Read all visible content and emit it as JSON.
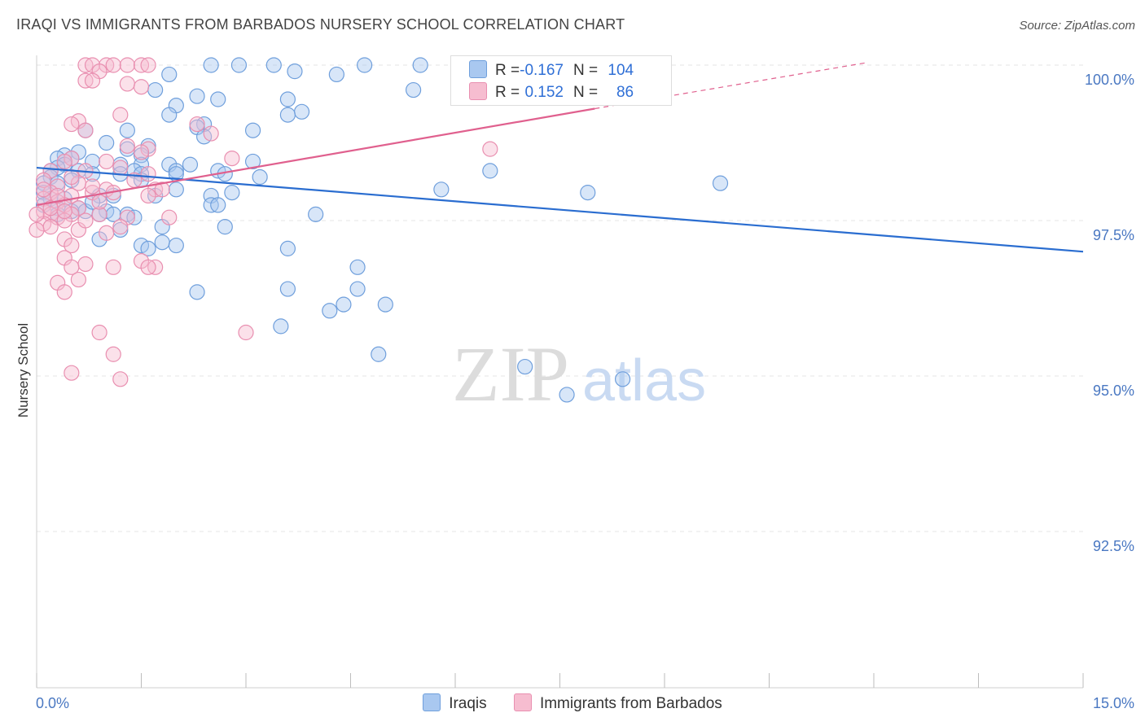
{
  "title": "IRAQI VS IMMIGRANTS FROM BARBADOS NURSERY SCHOOL CORRELATION CHART",
  "source": "Source: ZipAtlas.com",
  "watermark": {
    "zip": "ZIP",
    "atlas": "atlas"
  },
  "legend_top": {
    "rows": [
      {
        "r_label": "R =",
        "r_value": "-0.167",
        "n_label": "N =",
        "n_value": "104",
        "color": "#a9c8f0",
        "border": "#6f9fdc"
      },
      {
        "r_label": "R =",
        "r_value": "0.152",
        "n_label": "N =",
        "n_value": "86",
        "color": "#f6bdd0",
        "border": "#e98fb0"
      }
    ]
  },
  "legend_bottom": [
    {
      "label": "Iraqis",
      "color": "#a9c8f0",
      "border": "#6f9fdc"
    },
    {
      "label": "Immigrants from Barbados",
      "color": "#f6bdd0",
      "border": "#e98fb0"
    }
  ],
  "chart_data": {
    "type": "scatter",
    "title": "IRAQI VS IMMIGRANTS FROM BARBADOS NURSERY SCHOOL CORRELATION CHART",
    "xlabel": "",
    "ylabel": "Nursery School",
    "xlim": [
      0,
      15
    ],
    "ylim": [
      90.0,
      100.5
    ],
    "x_tick_labels": [
      {
        "value": 0,
        "label": "0.0%"
      },
      {
        "value": 15,
        "label": "15.0%"
      }
    ],
    "y_tick_labels": [
      {
        "value": 100,
        "label": "100.0%"
      },
      {
        "value": 97.5,
        "label": "97.5%"
      },
      {
        "value": 95,
        "label": "95.0%"
      },
      {
        "value": 92.5,
        "label": "92.5%"
      }
    ],
    "series": [
      {
        "name": "Iraqis",
        "color": "#a9c8f0",
        "stroke": "#6f9fdc",
        "trend": {
          "x0": 0,
          "y0": 98.35,
          "x1": 15,
          "y1": 97.0,
          "color": "#2a6dd0"
        },
        "points": [
          [
            2.5,
            100.0
          ],
          [
            2.9,
            100.0
          ],
          [
            3.4,
            100.0
          ],
          [
            4.7,
            100.0
          ],
          [
            5.5,
            100.0
          ],
          [
            3.7,
            99.9
          ],
          [
            4.3,
            99.85
          ],
          [
            1.9,
            99.85
          ],
          [
            1.7,
            99.6
          ],
          [
            5.4,
            99.6
          ],
          [
            2.3,
            99.5
          ],
          [
            2.6,
            99.45
          ],
          [
            3.6,
            99.45
          ],
          [
            2.0,
            99.35
          ],
          [
            3.8,
            99.25
          ],
          [
            3.6,
            99.2
          ],
          [
            1.9,
            99.2
          ],
          [
            2.4,
            99.05
          ],
          [
            2.3,
            99.0
          ],
          [
            3.1,
            98.95
          ],
          [
            2.4,
            98.85
          ],
          [
            0.7,
            98.95
          ],
          [
            1.3,
            98.95
          ],
          [
            1.0,
            98.75
          ],
          [
            1.6,
            98.7
          ],
          [
            1.3,
            98.65
          ],
          [
            0.6,
            98.6
          ],
          [
            0.4,
            98.55
          ],
          [
            1.5,
            98.55
          ],
          [
            0.5,
            98.5
          ],
          [
            0.3,
            98.5
          ],
          [
            0.8,
            98.45
          ],
          [
            0.4,
            98.4
          ],
          [
            1.2,
            98.4
          ],
          [
            1.5,
            98.4
          ],
          [
            1.9,
            98.4
          ],
          [
            2.2,
            98.4
          ],
          [
            3.1,
            98.45
          ],
          [
            0.3,
            98.35
          ],
          [
            0.2,
            98.3
          ],
          [
            0.6,
            98.3
          ],
          [
            1.4,
            98.3
          ],
          [
            2.0,
            98.3
          ],
          [
            2.6,
            98.3
          ],
          [
            6.5,
            98.3
          ],
          [
            0.8,
            98.25
          ],
          [
            1.2,
            98.25
          ],
          [
            1.5,
            98.25
          ],
          [
            2.7,
            98.25
          ],
          [
            0.2,
            98.2
          ],
          [
            2.0,
            98.25
          ],
          [
            3.2,
            98.2
          ],
          [
            0.5,
            98.15
          ],
          [
            1.5,
            98.15
          ],
          [
            0.1,
            98.1
          ],
          [
            0.3,
            98.1
          ],
          [
            9.8,
            98.1
          ],
          [
            5.8,
            98.0
          ],
          [
            7.9,
            97.95
          ],
          [
            2.0,
            98.0
          ],
          [
            2.8,
            97.95
          ],
          [
            0.9,
            97.9
          ],
          [
            1.7,
            97.9
          ],
          [
            0.1,
            97.95
          ],
          [
            2.5,
            97.9
          ],
          [
            0.2,
            97.85
          ],
          [
            0.4,
            97.85
          ],
          [
            0.1,
            97.75
          ],
          [
            0.3,
            97.7
          ],
          [
            0.6,
            97.7
          ],
          [
            2.5,
            97.75
          ],
          [
            2.6,
            97.75
          ],
          [
            1.0,
            97.65
          ],
          [
            4.0,
            97.6
          ],
          [
            1.1,
            97.6
          ],
          [
            1.3,
            97.6
          ],
          [
            0.9,
            97.6
          ],
          [
            0.7,
            97.65
          ],
          [
            0.3,
            97.6
          ],
          [
            1.4,
            97.55
          ],
          [
            2.7,
            97.4
          ],
          [
            1.8,
            97.4
          ],
          [
            1.2,
            97.35
          ],
          [
            0.9,
            97.2
          ],
          [
            1.8,
            97.15
          ],
          [
            1.5,
            97.1
          ],
          [
            1.6,
            97.05
          ],
          [
            3.6,
            97.05
          ],
          [
            4.6,
            96.75
          ],
          [
            3.6,
            96.4
          ],
          [
            4.6,
            96.4
          ],
          [
            2.3,
            96.35
          ],
          [
            5.0,
            96.15
          ],
          [
            4.4,
            96.15
          ],
          [
            4.2,
            96.05
          ],
          [
            3.5,
            95.8
          ],
          [
            4.9,
            95.35
          ],
          [
            7.0,
            95.15
          ],
          [
            8.4,
            94.95
          ],
          [
            7.6,
            94.7
          ],
          [
            2.0,
            97.1
          ],
          [
            0.8,
            97.8
          ],
          [
            0.5,
            97.65
          ],
          [
            1.1,
            97.9
          ]
        ]
      },
      {
        "name": "Immigrants from Barbados",
        "color": "#f6bdd0",
        "stroke": "#e98fb0",
        "trend": {
          "x0": 0,
          "y0": 97.75,
          "x1": 8.0,
          "y1": 99.3,
          "color": "#e0608e",
          "dash_x1": 11.9,
          "dash_y1": 100.04
        },
        "points": [
          [
            0.7,
            100.0
          ],
          [
            0.8,
            100.0
          ],
          [
            1.0,
            100.0
          ],
          [
            1.1,
            100.0
          ],
          [
            1.3,
            100.0
          ],
          [
            1.5,
            100.0
          ],
          [
            1.6,
            100.0
          ],
          [
            0.9,
            99.9
          ],
          [
            0.7,
            99.75
          ],
          [
            0.8,
            99.75
          ],
          [
            1.3,
            99.7
          ],
          [
            1.5,
            99.65
          ],
          [
            1.2,
            99.2
          ],
          [
            0.6,
            99.1
          ],
          [
            0.5,
            99.05
          ],
          [
            2.3,
            99.05
          ],
          [
            2.5,
            98.9
          ],
          [
            0.7,
            98.95
          ],
          [
            1.3,
            98.7
          ],
          [
            1.6,
            98.65
          ],
          [
            6.5,
            98.65
          ],
          [
            2.8,
            98.5
          ],
          [
            1.5,
            98.6
          ],
          [
            0.5,
            98.5
          ],
          [
            0.4,
            98.45
          ],
          [
            1.0,
            98.45
          ],
          [
            0.7,
            98.3
          ],
          [
            0.2,
            98.3
          ],
          [
            1.6,
            98.25
          ],
          [
            0.1,
            98.15
          ],
          [
            0.3,
            98.05
          ],
          [
            1.0,
            98.0
          ],
          [
            1.7,
            98.0
          ],
          [
            0.2,
            97.95
          ],
          [
            0.5,
            97.9
          ],
          [
            0.8,
            97.95
          ],
          [
            1.6,
            97.9
          ],
          [
            0.1,
            97.85
          ],
          [
            0.3,
            97.8
          ],
          [
            0.4,
            97.75
          ],
          [
            0.6,
            97.7
          ],
          [
            0.1,
            97.65
          ],
          [
            0.2,
            97.6
          ],
          [
            0.3,
            97.55
          ],
          [
            0.5,
            97.6
          ],
          [
            0.9,
            97.6
          ],
          [
            0.4,
            97.5
          ],
          [
            0.1,
            97.45
          ],
          [
            1.3,
            97.55
          ],
          [
            1.9,
            97.55
          ],
          [
            0.2,
            97.4
          ],
          [
            0.6,
            97.35
          ],
          [
            1.0,
            97.3
          ],
          [
            1.2,
            97.4
          ],
          [
            0.4,
            97.2
          ],
          [
            0.5,
            97.1
          ],
          [
            0.0,
            97.35
          ],
          [
            0.4,
            96.9
          ],
          [
            1.5,
            96.85
          ],
          [
            0.7,
            96.8
          ],
          [
            0.5,
            96.75
          ],
          [
            1.1,
            96.75
          ],
          [
            1.7,
            96.75
          ],
          [
            1.6,
            96.75
          ],
          [
            0.6,
            96.55
          ],
          [
            0.3,
            96.5
          ],
          [
            0.4,
            96.35
          ],
          [
            0.9,
            95.7
          ],
          [
            3.0,
            95.7
          ],
          [
            1.1,
            95.35
          ],
          [
            0.5,
            95.05
          ],
          [
            1.2,
            94.95
          ],
          [
            0.2,
            97.7
          ],
          [
            0.3,
            97.9
          ],
          [
            0.9,
            97.8
          ],
          [
            1.4,
            98.15
          ],
          [
            0.7,
            97.5
          ],
          [
            0.6,
            98.1
          ],
          [
            0.8,
            98.05
          ],
          [
            0.1,
            98.0
          ],
          [
            1.1,
            97.95
          ],
          [
            0.5,
            98.2
          ],
          [
            1.2,
            98.35
          ],
          [
            1.8,
            98.0
          ],
          [
            0.4,
            97.65
          ],
          [
            0.0,
            97.6
          ]
        ]
      }
    ]
  }
}
